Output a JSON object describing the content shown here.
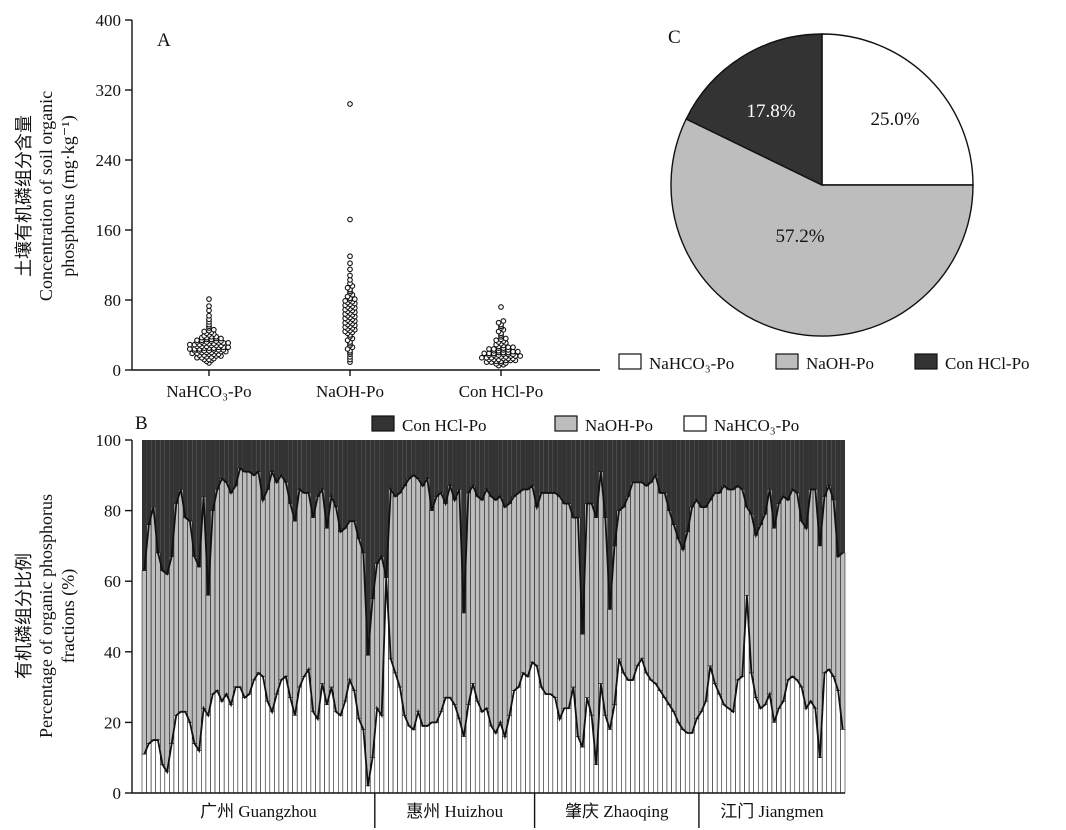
{
  "chart_data": [
    {
      "panel": "A",
      "type": "scatter",
      "ylabel_cn": "土壤有机磷组分含量",
      "ylabel_en_line1": "Concentration of soil organic",
      "ylabel_en_line2": "phosphorus (mg·kg⁻¹)",
      "ylim": [
        0,
        400
      ],
      "yticks": [
        "0",
        "80",
        "160",
        "240",
        "320",
        "400"
      ],
      "categories": [
        "NaHCO₃-Po",
        "NaOH-Po",
        "Con HCl-Po"
      ],
      "series": [
        {
          "category": "NaHCO₃-Po",
          "values": [
            8,
            10,
            11,
            12,
            12,
            13,
            14,
            14,
            15,
            15,
            16,
            16,
            17,
            17,
            18,
            18,
            18,
            19,
            19,
            20,
            20,
            20,
            21,
            21,
            21,
            22,
            22,
            22,
            22,
            23,
            23,
            23,
            24,
            24,
            24,
            25,
            25,
            25,
            26,
            26,
            26,
            27,
            27,
            27,
            28,
            28,
            28,
            29,
            29,
            29,
            30,
            30,
            30,
            31,
            31,
            31,
            32,
            32,
            32,
            33,
            33,
            33,
            34,
            34,
            35,
            35,
            36,
            36,
            37,
            37,
            38,
            38,
            39,
            40,
            41,
            42,
            43,
            44,
            45,
            46,
            48,
            50,
            52,
            55,
            58,
            62,
            68,
            73,
            81
          ]
        },
        {
          "category": "NaOH-Po",
          "values": [
            9,
            12,
            15,
            18,
            20,
            22,
            24,
            26,
            28,
            30,
            32,
            34,
            36,
            38,
            40,
            42,
            43,
            44,
            45,
            46,
            47,
            48,
            49,
            50,
            51,
            52,
            53,
            54,
            55,
            56,
            57,
            58,
            59,
            60,
            61,
            62,
            63,
            64,
            65,
            66,
            67,
            68,
            69,
            70,
            71,
            72,
            73,
            74,
            75,
            76,
            77,
            78,
            79,
            80,
            81,
            82,
            84,
            86,
            88,
            90,
            92,
            94,
            96,
            99,
            103,
            108,
            115,
            122,
            130,
            172,
            304
          ]
        },
        {
          "category": "Con HCl-Po",
          "values": [
            5,
            6,
            7,
            8,
            8,
            9,
            9,
            10,
            10,
            11,
            11,
            11,
            12,
            12,
            12,
            13,
            13,
            13,
            14,
            14,
            14,
            15,
            15,
            15,
            16,
            16,
            16,
            17,
            17,
            17,
            18,
            18,
            18,
            19,
            19,
            19,
            20,
            20,
            20,
            21,
            21,
            22,
            22,
            23,
            23,
            24,
            24,
            25,
            25,
            26,
            26,
            27,
            28,
            29,
            30,
            31,
            32,
            33,
            34,
            35,
            36,
            38,
            40,
            42,
            44,
            46,
            48,
            50,
            52,
            54,
            56,
            72
          ]
        }
      ]
    },
    {
      "panel": "B",
      "type": "bar",
      "stacked": true,
      "ylabel_cn": "有机磷组分比例",
      "ylabel_en_line1": "Percentage of organic phosphorus",
      "ylabel_en_line2": "fractions (%)",
      "ylim": [
        0,
        100
      ],
      "yticks": [
        "0",
        "20",
        "40",
        "60",
        "80",
        "100"
      ],
      "legend": [
        "Con HCl-Po",
        "NaOH-Po",
        "NaHCO₃-Po"
      ],
      "groups": [
        {
          "label": "广州 Guangzhou",
          "count": 51
        },
        {
          "label": "惠州 Huizhou",
          "count": 35
        },
        {
          "label": "肇庆 Zhaoqing",
          "count": 36
        },
        {
          "label": "江门 Jiangmen",
          "count": 32
        }
      ],
      "series": [
        {
          "name": "NaHCO₃-Po",
          "values": [
            11,
            14,
            15,
            15,
            8,
            6,
            14,
            22,
            23,
            23,
            20,
            14,
            12,
            24,
            22,
            28,
            29,
            26,
            28,
            25,
            30,
            30,
            27,
            28,
            32,
            34,
            33,
            26,
            23,
            28,
            32,
            33,
            27,
            22,
            30,
            33,
            35,
            23,
            21,
            31,
            25,
            30,
            23,
            22,
            26,
            32,
            29,
            21,
            18,
            2,
            10,
            24,
            22,
            61,
            38,
            34,
            30,
            22,
            19,
            18,
            23,
            19,
            19,
            20,
            20,
            23,
            27,
            27,
            25,
            21,
            16,
            25,
            31,
            26,
            23,
            24,
            19,
            17,
            20,
            16,
            22,
            29,
            30,
            34,
            33,
            37,
            36,
            30,
            28,
            28,
            27,
            21,
            24,
            24,
            30,
            16,
            13,
            27,
            22,
            8,
            31,
            22,
            18,
            25,
            38,
            34,
            32,
            32,
            36,
            38,
            34,
            32,
            31,
            29,
            27,
            25,
            23,
            20,
            18,
            17,
            17,
            21,
            23,
            26,
            36,
            31,
            28,
            25,
            24,
            23,
            32,
            33,
            56,
            34,
            27,
            24,
            25,
            28,
            20,
            24,
            26,
            32,
            33,
            32,
            30,
            24,
            26,
            24,
            10,
            34,
            35,
            33,
            29,
            18
          ]
        },
        {
          "name": "NaOH-Po",
          "values": [
            52,
            62,
            66,
            53,
            55,
            56,
            53,
            60,
            63,
            55,
            57,
            53,
            52,
            60,
            34,
            52,
            57,
            63,
            60,
            60,
            57,
            62,
            64,
            63,
            58,
            57,
            50,
            60,
            68,
            60,
            58,
            55,
            55,
            55,
            56,
            52,
            50,
            55,
            63,
            55,
            50,
            54,
            58,
            52,
            49,
            45,
            48,
            51,
            50,
            37,
            45,
            41,
            45,
            -2,
            48,
            50,
            55,
            65,
            70,
            72,
            66,
            68,
            70,
            60,
            64,
            62,
            55,
            60,
            58,
            65,
            35,
            60,
            56,
            58,
            60,
            62,
            65,
            66,
            64,
            65,
            60,
            55,
            55,
            52,
            53,
            50,
            45,
            55,
            57,
            57,
            58,
            63,
            58,
            58,
            48,
            62,
            32,
            55,
            60,
            70,
            60,
            56,
            34,
            45,
            42,
            47,
            52,
            56,
            52,
            50,
            53,
            56,
            59,
            56,
            58,
            55,
            53,
            52,
            51,
            57,
            64,
            62,
            58,
            55,
            47,
            54,
            57,
            62,
            62,
            63,
            55,
            53,
            25,
            45,
            46,
            52,
            54,
            58,
            55,
            58,
            58,
            51,
            53,
            53,
            47,
            51,
            60,
            62,
            60,
            50,
            52,
            50,
            38,
            50
          ]
        }
      ]
    },
    {
      "panel": "C",
      "type": "pie",
      "slices": [
        {
          "name": "NaHCO₃-Po",
          "value": 25.0,
          "label": "25.0%",
          "color": "#ffffff"
        },
        {
          "name": "NaOH-Po",
          "value": 57.2,
          "label": "57.2%",
          "color": "#bdbdbd"
        },
        {
          "name": "Con HCl-Po",
          "value": 17.8,
          "label": "17.8%",
          "color": "#333333"
        }
      ],
      "legend": [
        "NaHCO₃-Po",
        "NaOH-Po",
        "Con HCl-Po"
      ]
    }
  ],
  "colors": {
    "con_hcl": "#333333",
    "naoh": "#bdbdbd",
    "nahco3": "#ffffff",
    "stroke": "#111111"
  }
}
